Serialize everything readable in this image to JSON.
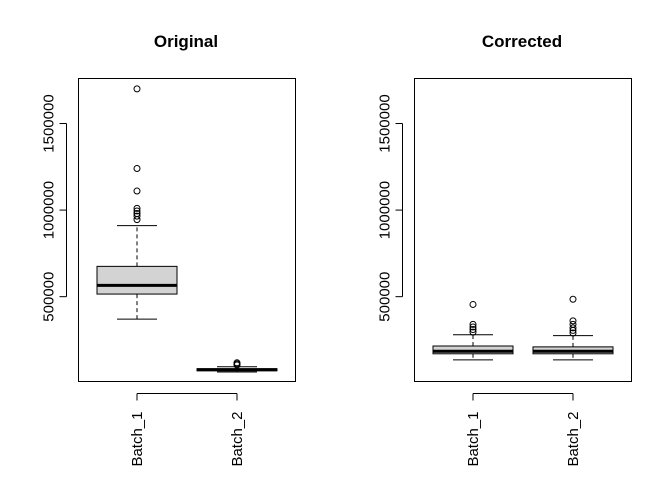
{
  "chart_data": [
    {
      "type": "boxplot",
      "title": "Original",
      "xlabel": "",
      "ylabel": "",
      "ylim": [
        10000,
        1760000
      ],
      "y_ticks": [
        500000,
        1000000,
        1500000
      ],
      "y_tick_labels": [
        "500000",
        "1000000",
        "1500000"
      ],
      "categories": [
        "Batch_1",
        "Batch_2"
      ],
      "box_fill": "#d3d3d3",
      "boxes": [
        {
          "name": "Batch_1",
          "whisker_low": 370000,
          "q1": 515000,
          "median": 565000,
          "q3": 675000,
          "whisker_high": 910000,
          "outliers": [
            945000,
            965000,
            980000,
            995000,
            1010000,
            1110000,
            1240000,
            1700000
          ]
        },
        {
          "name": "Batch_2",
          "whisker_low": 65000,
          "q1": 72000,
          "median": 78000,
          "q3": 84000,
          "whisker_high": 95000,
          "outliers": [
            105000,
            112000,
            118000
          ]
        }
      ]
    },
    {
      "type": "boxplot",
      "title": "Corrected",
      "xlabel": "",
      "ylabel": "",
      "ylim": [
        10000,
        1760000
      ],
      "y_ticks": [
        500000,
        1000000,
        1500000
      ],
      "y_tick_labels": [
        "500000",
        "1000000",
        "1500000"
      ],
      "categories": [
        "Batch_1",
        "Batch_2"
      ],
      "box_fill": "#d3d3d3",
      "boxes": [
        {
          "name": "Batch_1",
          "whisker_low": 135000,
          "q1": 170000,
          "median": 185000,
          "q3": 215000,
          "whisker_high": 280000,
          "outliers": [
            295000,
            310000,
            325000,
            340000,
            455000
          ]
        },
        {
          "name": "Batch_2",
          "whisker_low": 135000,
          "q1": 170000,
          "median": 185000,
          "q3": 210000,
          "whisker_high": 275000,
          "outliers": [
            290000,
            305000,
            320000,
            340000,
            360000,
            485000
          ]
        }
      ]
    }
  ]
}
